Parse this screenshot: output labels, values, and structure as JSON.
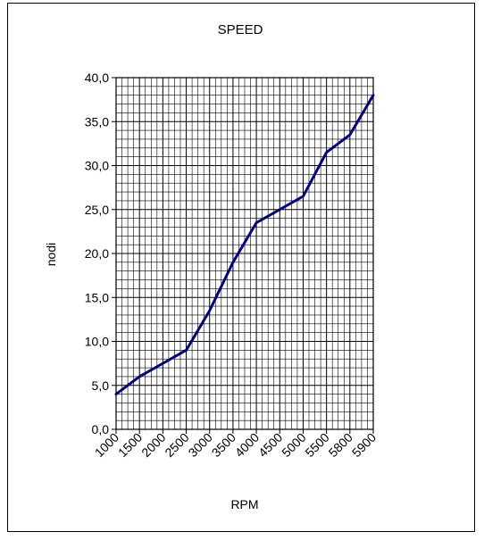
{
  "chart_data": {
    "type": "line",
    "title": "SPEED",
    "xlabel": "RPM",
    "ylabel": "nodi",
    "categories": [
      "1000",
      "1500",
      "2000",
      "2500",
      "3000",
      "3500",
      "4000",
      "4500",
      "5000",
      "5500",
      "5800",
      "5900"
    ],
    "series": [
      {
        "values": [
          4.0,
          6.0,
          7.5,
          9.0,
          13.5,
          19.0,
          23.5,
          25.0,
          26.5,
          31.5,
          33.5,
          38.0
        ],
        "color": "#000080"
      }
    ],
    "ylim": [
      0,
      40
    ],
    "y_ticks": [
      "0,0",
      "5,0",
      "10,0",
      "15,0",
      "20,0",
      "25,0",
      "30,0",
      "35,0",
      "40,0"
    ],
    "y_major_step": 5,
    "y_minor_step": 1,
    "x_minor_per_category": 4,
    "grid": true,
    "legend": "none"
  }
}
